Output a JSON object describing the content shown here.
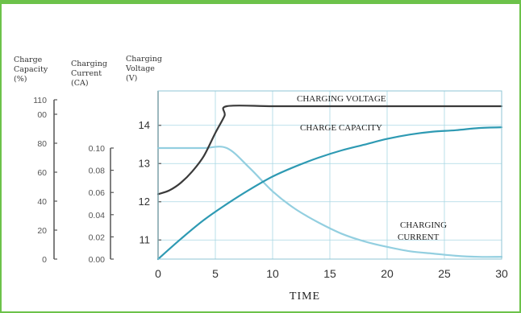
{
  "chart_data": {
    "type": "line",
    "title": "",
    "xlabel": "TIME",
    "xlim": [
      0,
      30
    ],
    "x_ticks": [
      0,
      5,
      10,
      15,
      20,
      25,
      30
    ],
    "grid": true,
    "axes": {
      "capacity": {
        "label_lines": [
          "Charge",
          "Capacity",
          "(%)"
        ],
        "ticks": [
          "110",
          "00",
          "80",
          "60",
          "40",
          "20",
          "0"
        ],
        "tick_values": [
          110,
          100,
          80,
          60,
          40,
          20,
          0
        ],
        "ylim": [
          0,
          110
        ]
      },
      "current": {
        "label_lines": [
          "Charging",
          "Current",
          "(CA)"
        ],
        "ticks": [
          "0.10",
          "0.08",
          "0.06",
          "0.04",
          "0.02",
          "0.00"
        ],
        "tick_values": [
          0.1,
          0.08,
          0.06,
          0.04,
          0.02,
          0.0
        ],
        "ylim": [
          0,
          0.1
        ]
      },
      "voltage": {
        "label_lines": [
          "Charging",
          "Voltage",
          "(V)"
        ],
        "ticks": [
          "14",
          "13",
          "12",
          "11"
        ],
        "tick_values": [
          14,
          13,
          12,
          11
        ],
        "ylim": [
          10.5,
          14.9
        ]
      }
    },
    "series": [
      {
        "name": "CHARGING VOLTAGE",
        "axis": "voltage",
        "color": "#3a3a3a",
        "x": [
          0,
          1,
          2,
          3,
          4,
          5,
          5.8,
          6,
          10,
          15,
          20,
          25,
          30
        ],
        "y": [
          12.2,
          12.3,
          12.5,
          12.8,
          13.2,
          13.8,
          14.25,
          14.5,
          14.5,
          14.5,
          14.5,
          14.5,
          14.5
        ]
      },
      {
        "name": "CHARGE CAPACITY",
        "axis": "capacity",
        "color": "#2e9ab3",
        "x": [
          0,
          2,
          4,
          6,
          8,
          10,
          12,
          14,
          16,
          18,
          20,
          22,
          24,
          26,
          28,
          30
        ],
        "y": [
          0,
          14,
          27,
          38,
          48,
          57,
          64,
          70,
          75,
          79,
          83,
          86,
          88,
          89,
          90.5,
          91
        ]
      },
      {
        "name": "CHARGING CURRENT",
        "name_lines": [
          "CHARGING",
          "CURRENT"
        ],
        "axis": "current",
        "color": "#93cfe0",
        "x": [
          0,
          2,
          4,
          6,
          8,
          10,
          12,
          14,
          16,
          18,
          20,
          22,
          24,
          26,
          28,
          30
        ],
        "y": [
          0.1,
          0.1,
          0.1,
          0.1,
          0.082,
          0.061,
          0.045,
          0.033,
          0.023,
          0.016,
          0.011,
          0.007,
          0.005,
          0.003,
          0.002,
          0.002
        ]
      }
    ]
  }
}
